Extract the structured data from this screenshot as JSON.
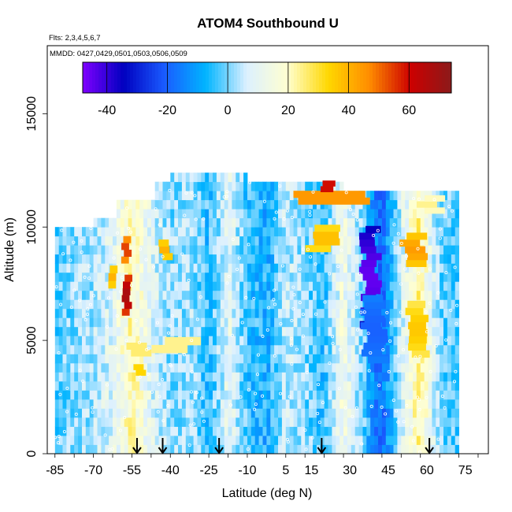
{
  "chart_data": {
    "type": "heatmap",
    "title": "ATOM4 Southbound U",
    "subtitle_flights": "Flts: 2,3,4,5,6,7",
    "subtitle_dates": "MMDD: 0427,0429,0501,0503,0506,0509",
    "xlabel": "Latitude (deg N)",
    "ylabel": "Altitude (m)",
    "xlim": [
      -88,
      84
    ],
    "ylim": [
      0,
      18000
    ],
    "x_ticks": [
      -85,
      -70,
      -55,
      -40,
      -25,
      -10,
      5,
      15,
      30,
      45,
      60,
      75
    ],
    "x_tick_labels": [
      "-85",
      "-70",
      "-55",
      "-40",
      "-25",
      "-10",
      "5",
      "15",
      "30",
      "45",
      "60",
      "75"
    ],
    "y_ticks": [
      0,
      5000,
      10000,
      15000
    ],
    "y_tick_labels": [
      "0",
      "5000",
      "10000",
      "15000"
    ],
    "colorbar": {
      "range": [
        -48,
        74
      ],
      "ticks": [
        -40,
        -20,
        0,
        20,
        40,
        60
      ],
      "tick_labels": [
        "-40",
        "-20",
        "0",
        "20",
        "40",
        "60"
      ],
      "palette": [
        "#7f00ff",
        "#0000c0",
        "#1a5cff",
        "#00b4ff",
        "#dcf0ff",
        "#ffffd0",
        "#ffd700",
        "#ff8c00",
        "#cc0000",
        "#8b1a1a"
      ]
    },
    "arrows_lat": [
      -53,
      -43,
      -21,
      19,
      61
    ],
    "column_extent": {
      "lat_edges": [
        -85,
        -77,
        -70,
        -62,
        -55,
        -47,
        -40,
        -32,
        -25,
        -17,
        -10,
        -2,
        5,
        12,
        20,
        27,
        35,
        42,
        50,
        57,
        65,
        72
      ],
      "top_alt": [
        10000,
        10000,
        10400,
        11100,
        11100,
        12000,
        12400,
        12400,
        12400,
        12200,
        12000,
        12000,
        12000,
        11900,
        11900,
        11600,
        11400,
        11400,
        11400,
        11300,
        11300,
        10600
      ]
    },
    "zonal_background": {
      "lat": [
        -85,
        -77,
        -70,
        -62,
        -55,
        -47,
        -40,
        -32,
        -25,
        -17,
        -10,
        -2,
        5,
        12,
        20,
        27,
        35,
        42,
        50,
        57,
        65,
        72
      ],
      "u_mps": [
        -3,
        2,
        3,
        10,
        22,
        8,
        1,
        3,
        -5,
        10,
        -4,
        -8,
        6,
        1,
        -5,
        14,
        0,
        -20,
        6,
        24,
        0,
        -3
      ]
    },
    "features": [
      {
        "lat": -57,
        "alt": 7000,
        "u": 68,
        "w": 3,
        "h": 1800
      },
      {
        "lat": -57,
        "alt": 9000,
        "u": 55,
        "w": 3,
        "h": 1200
      },
      {
        "lat": -62,
        "alt": 7800,
        "u": 40,
        "w": 3,
        "h": 1000
      },
      {
        "lat": -52,
        "alt": 3700,
        "u": 36,
        "w": 4,
        "h": 500
      },
      {
        "lat": -42,
        "alt": 9000,
        "u": 40,
        "w": 4,
        "h": 900
      },
      {
        "lat": -52,
        "alt": 4600,
        "u": 28,
        "w": 8,
        "h": 600
      },
      {
        "lat": -38,
        "alt": 4800,
        "u": 26,
        "w": 14,
        "h": 700
      },
      {
        "lat": 20,
        "alt": 11300,
        "u": 48,
        "w": 28,
        "h": 600
      },
      {
        "lat": 22,
        "alt": 11800,
        "u": 64,
        "w": 5,
        "h": 500
      },
      {
        "lat": 20,
        "alt": 9500,
        "u": 38,
        "w": 10,
        "h": 1200
      },
      {
        "lat": 38,
        "alt": 7800,
        "u": -45,
        "w": 6,
        "h": 4500
      },
      {
        "lat": 40,
        "alt": 5500,
        "u": -20,
        "w": 8,
        "h": 3000
      },
      {
        "lat": 55,
        "alt": 9000,
        "u": 44,
        "w": 8,
        "h": 1500
      },
      {
        "lat": 56,
        "alt": 5500,
        "u": 36,
        "w": 7,
        "h": 2500
      },
      {
        "lat": 62,
        "alt": 11000,
        "u": 24,
        "w": 8,
        "h": 800
      }
    ]
  }
}
